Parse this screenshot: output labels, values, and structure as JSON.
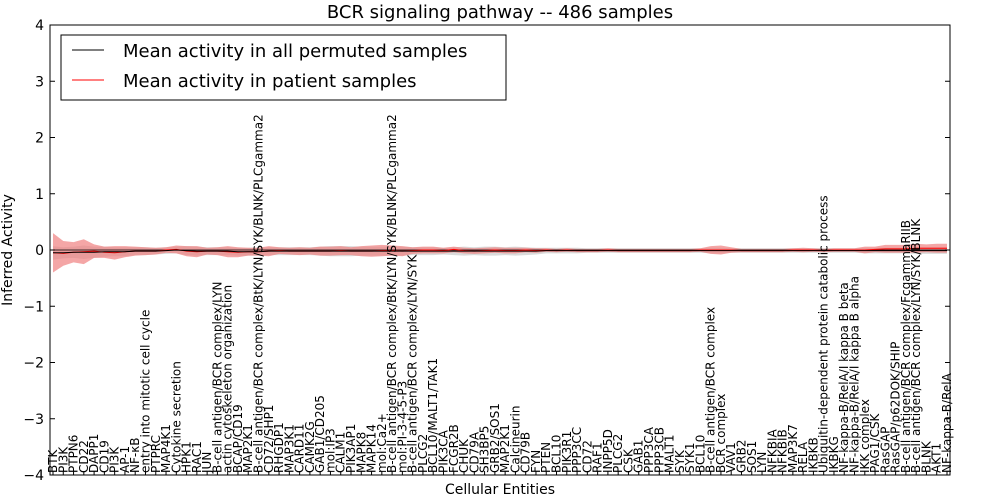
{
  "chart_data": {
    "type": "line",
    "title": "BCR signaling pathway -- 486 samples",
    "xlabel": "Cellular Entities",
    "ylabel": "Inferred Activity",
    "ylim": [
      -4,
      4
    ],
    "yticks": [
      -4,
      -3,
      -2,
      -1,
      0,
      1,
      2,
      3,
      4
    ],
    "grid": false,
    "legend_position": "top-left",
    "colors": {
      "permuted_line": "#000000",
      "patient_line": "#ff0000",
      "patient_band": "#f08080",
      "permuted_band": "#bbbbbb"
    },
    "categories": [
      "BTK",
      "PI3K",
      "PTPN6",
      "CD22",
      "DAPP1",
      "CD19",
      "PI3K",
      "AP-1",
      "NF-κB",
      "entry into mitotic cell cycle",
      "PTPRC",
      "MAP4K1",
      "Cytokine secretion",
      "HPK1",
      "RAC1",
      "JUN",
      "B-cell antigen/BCR complex/LYN",
      "actin cytoskeleton organization",
      "BCAP/CD19",
      "MAP2K1",
      "B-cell antigen/BCR complex/BtK/LYN/SYK/BLNK/PLCgamma2",
      "CD72/SHP1",
      "RHGDP1",
      "MAP3K1",
      "CARD11",
      "CAMK2G",
      "GAB1/CD205",
      "mol:IP3",
      "CALM1",
      "PIK3AP1",
      "MAPK8",
      "MAPK14",
      "mol:Ca2+",
      "B-cell antigen/BCR complex/BtK/LYN/SYK/BLNK/PLCgamma2",
      "mol:PI-3-4-5-P3",
      "B-cell antigen/BCR complex/LYN/SYK",
      "PLCG2",
      "BCL10/MALT1/TAK1",
      "PIK3CA",
      "FCGR2B",
      "CHUK",
      "CD79A",
      "SH3BP5",
      "GRB2/SOS1",
      "MAP2K1",
      "Calcineurin",
      "CD79B",
      "FYN",
      "PTEN",
      "BCL10",
      "PIK3R1",
      "PPP3CC",
      "CD72",
      "RAF1",
      "INPP5D",
      "PLCG2",
      "CSK",
      "GAB1",
      "PPP3CA",
      "PPP3CB",
      "MALT1",
      "SYK",
      "SYK1",
      "BCL10",
      "B-cell antigen/BCR complex",
      "BCR complex",
      "VAV1",
      "GRB2",
      "SOS1",
      "LYN",
      "NFKBIA",
      "NFKBIB",
      "MAP3K7",
      "RELA",
      "IKBKB",
      "Ubiquitin-dependent protein catabolic process",
      "IKBKG",
      "NF-kappa-B/RelA/I kappa B beta",
      "NF-kappa-B/RelA/I kappa B alpha",
      "IKK complex",
      "PAG1/CSK",
      "RasGAP",
      "RasGAP/p62DOK/SHIP",
      "B-cell antigen/BCR complex/FcgammaRIIB",
      "B-cell antigen/BCR complex/LYN/SYK/BLNK",
      "BLNK",
      "AKT1",
      "NF-kappa-B/RelA"
    ],
    "series": [
      {
        "name": "Mean activity in all permuted samples",
        "values": [
          -0.05,
          -0.05,
          -0.04,
          -0.04,
          -0.04,
          -0.03,
          -0.03,
          -0.03,
          -0.02,
          -0.02,
          -0.02,
          -0.01,
          0.0,
          -0.01,
          -0.02,
          -0.02,
          -0.02,
          -0.02,
          -0.03,
          -0.03,
          -0.03,
          -0.02,
          -0.02,
          -0.02,
          -0.02,
          -0.02,
          -0.02,
          -0.02,
          -0.02,
          -0.02,
          -0.02,
          -0.02,
          -0.02,
          -0.02,
          -0.02,
          -0.02,
          -0.02,
          -0.02,
          -0.02,
          -0.02,
          -0.02,
          -0.02,
          -0.02,
          -0.02,
          -0.02,
          -0.02,
          -0.02,
          -0.02,
          -0.01,
          -0.01,
          -0.01,
          -0.01,
          -0.01,
          -0.01,
          -0.01,
          -0.01,
          -0.01,
          -0.01,
          -0.01,
          -0.01,
          -0.01,
          -0.01,
          -0.01,
          -0.01,
          -0.01,
          -0.01,
          -0.01,
          -0.01,
          -0.01,
          -0.01,
          -0.01,
          -0.01,
          -0.01,
          -0.01,
          -0.01,
          -0.01,
          -0.01,
          -0.01,
          -0.01,
          -0.01,
          -0.01,
          -0.01,
          -0.01,
          -0.01,
          -0.01,
          -0.01,
          -0.01,
          -0.01
        ]
      },
      {
        "name": "Mean activity in patient samples",
        "values": [
          -0.05,
          -0.06,
          -0.04,
          -0.03,
          -0.02,
          -0.04,
          -0.05,
          -0.03,
          -0.02,
          -0.02,
          -0.02,
          0.0,
          0.01,
          -0.02,
          -0.03,
          -0.02,
          -0.02,
          -0.03,
          -0.04,
          -0.03,
          -0.03,
          -0.02,
          -0.01,
          -0.02,
          -0.02,
          -0.02,
          -0.02,
          -0.02,
          -0.01,
          -0.02,
          -0.02,
          -0.02,
          -0.01,
          -0.01,
          -0.02,
          -0.01,
          0.0,
          0.0,
          -0.01,
          0.01,
          -0.01,
          -0.02,
          -0.01,
          0.0,
          -0.01,
          -0.01,
          0.0,
          -0.01,
          0.0,
          -0.01,
          0.0,
          -0.01,
          -0.01,
          -0.01,
          0.0,
          -0.01,
          -0.01,
          -0.01,
          -0.01,
          -0.01,
          -0.01,
          -0.01,
          -0.01,
          0.0,
          0.0,
          0.0,
          0.0,
          -0.01,
          -0.01,
          -0.01,
          -0.01,
          -0.01,
          0.0,
          0.0,
          0.0,
          -0.01,
          0.0,
          0.0,
          0.0,
          0.0,
          0.01,
          0.02,
          0.02,
          0.02,
          0.03,
          0.03,
          0.03,
          0.03
        ],
        "band": [
          0.35,
          0.22,
          0.18,
          0.22,
          0.12,
          0.1,
          0.12,
          0.1,
          0.08,
          0.07,
          0.06,
          0.05,
          0.07,
          0.09,
          0.1,
          0.06,
          0.07,
          0.1,
          0.09,
          0.07,
          0.07,
          0.09,
          0.06,
          0.06,
          0.07,
          0.06,
          0.08,
          0.08,
          0.08,
          0.07,
          0.09,
          0.1,
          0.1,
          0.09,
          0.09,
          0.06,
          0.06,
          0.06,
          0.05,
          0.05,
          0.05,
          0.05,
          0.05,
          0.05,
          0.05,
          0.05,
          0.04,
          0.04,
          0.03,
          0.03,
          0.03,
          0.03,
          0.03,
          0.03,
          0.03,
          0.03,
          0.03,
          0.03,
          0.03,
          0.03,
          0.03,
          0.03,
          0.03,
          0.03,
          0.07,
          0.08,
          0.05,
          0.03,
          0.03,
          0.03,
          0.03,
          0.03,
          0.03,
          0.04,
          0.03,
          0.03,
          0.03,
          0.03,
          0.03,
          0.06,
          0.05,
          0.07,
          0.07,
          0.07,
          0.08,
          0.07,
          0.08,
          0.08
        ]
      }
    ],
    "permuted_band": [
      0.12,
      0.1,
      0.1,
      0.12,
      0.1,
      0.09,
      0.08,
      0.08,
      0.07,
      0.07,
      0.06,
      0.06,
      0.06,
      0.08,
      0.08,
      0.07,
      0.07,
      0.07,
      0.07,
      0.07,
      0.07,
      0.07,
      0.07,
      0.07,
      0.07,
      0.07,
      0.08,
      0.09,
      0.09,
      0.09,
      0.08,
      0.08,
      0.08,
      0.08,
      0.08,
      0.07,
      0.07,
      0.07,
      0.06,
      0.07,
      0.08,
      0.07,
      0.08,
      0.08,
      0.07,
      0.08,
      0.07,
      0.06,
      0.05,
      0.05,
      0.05,
      0.05,
      0.04,
      0.04,
      0.04,
      0.04,
      0.04,
      0.04,
      0.04,
      0.04,
      0.04,
      0.04,
      0.04,
      0.04,
      0.05,
      0.05,
      0.04,
      0.04,
      0.04,
      0.04,
      0.04,
      0.04,
      0.04,
      0.04,
      0.04,
      0.04,
      0.04,
      0.04,
      0.04,
      0.05,
      0.05,
      0.05,
      0.05,
      0.05,
      0.06,
      0.06,
      0.06,
      0.06
    ]
  }
}
